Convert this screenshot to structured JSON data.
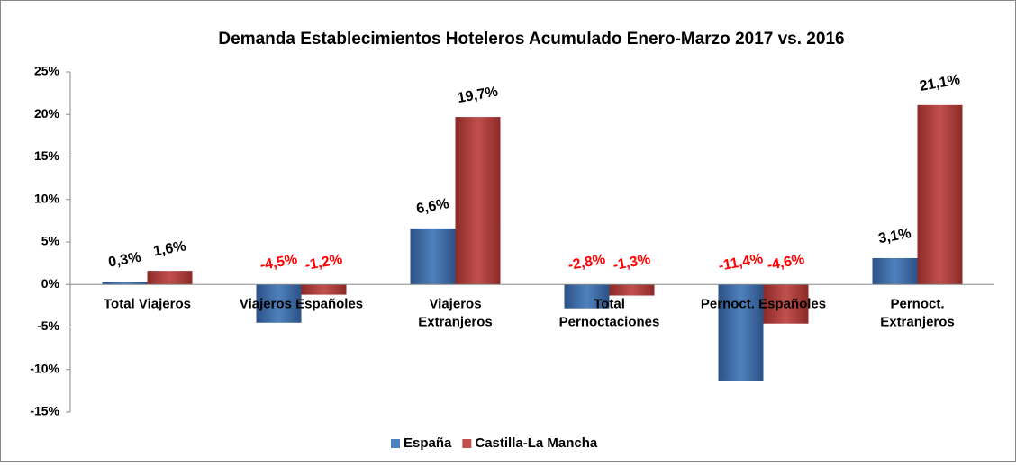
{
  "chart_data": {
    "type": "bar",
    "title": "Demanda Establecimientos Hoteleros Acumulado Enero-Marzo 2017 vs. 2016",
    "categories": [
      "Total Viajeros",
      "Viajeros Españoles",
      "Viajeros\nExtranjeros",
      "Total\nPernoctaciones",
      "Pernoct. Españoles",
      "Pernoct.\nExtranjeros"
    ],
    "series": [
      {
        "name": "España",
        "color": "#4f81bd",
        "values": [
          0.3,
          -4.5,
          6.6,
          -2.8,
          -11.4,
          3.1
        ],
        "value_labels": [
          "0,3%",
          "-4,5%",
          "6,6%",
          "-2,8%",
          "-11,4%",
          "3,1%"
        ]
      },
      {
        "name": "Castilla-La Mancha",
        "color": "#c0504d",
        "values": [
          1.6,
          -1.2,
          19.7,
          -1.3,
          -4.6,
          21.1
        ],
        "value_labels": [
          "1,6%",
          "-1,2%",
          "19,7%",
          "-1,3%",
          "-4,6%",
          "21,1%"
        ]
      }
    ],
    "negative_label_color": "#ff0000",
    "ylim": [
      -15,
      25
    ],
    "yticks": [
      {
        "value": -15,
        "label": "-15%"
      },
      {
        "value": -10,
        "label": "-10%"
      },
      {
        "value": -5,
        "label": "-5%"
      },
      {
        "value": 0,
        "label": "0%"
      },
      {
        "value": 5,
        "label": "5%"
      },
      {
        "value": 10,
        "label": "10%"
      },
      {
        "value": 15,
        "label": "15%"
      },
      {
        "value": 20,
        "label": "20%"
      },
      {
        "value": 25,
        "label": "25%"
      }
    ],
    "legend": "bottom"
  }
}
